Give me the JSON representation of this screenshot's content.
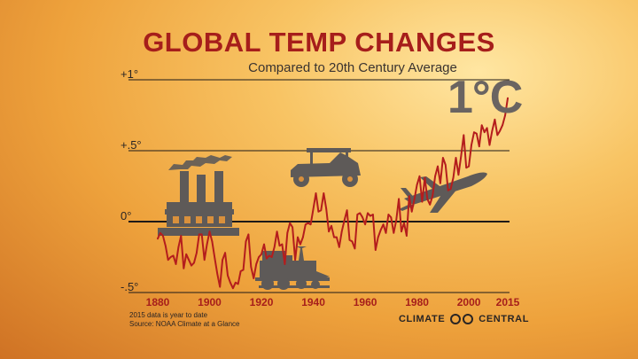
{
  "title": "GLOBAL TEMP CHANGES",
  "subtitle": "Compared to 20th Century Average",
  "big_label": "1°C",
  "notes": {
    "line1": "2015 data is year to date",
    "line2": "Source: NOAA Climate at a Glance"
  },
  "logo": {
    "left": "CLIMATE",
    "right": "CENTRAL"
  },
  "colors": {
    "line": "#b41d1d",
    "title": "#a61e1b",
    "silhouette": "#5e5a58",
    "grid": "#1e1a18"
  },
  "icons": [
    "factory-icon",
    "car-icon",
    "train-icon",
    "airplane-icon"
  ],
  "chart_data": {
    "type": "line",
    "title": "GLOBAL TEMP CHANGES",
    "subtitle": "Compared to 20th Century Average",
    "unit": "°C",
    "xlim": [
      1880,
      2015
    ],
    "ylim": [
      -0.5,
      1.0
    ],
    "ytick_labels": [
      {
        "value": 1.0,
        "label": "+1°"
      },
      {
        "value": 0.5,
        "label": "+.5°"
      },
      {
        "value": 0.0,
        "label": "0°"
      },
      {
        "value": -0.5,
        "label": "-.5°"
      }
    ],
    "xtick_labels": [
      {
        "value": 1880,
        "label": "1880"
      },
      {
        "value": 1900,
        "label": "1900"
      },
      {
        "value": 1920,
        "label": "1920"
      },
      {
        "value": 1940,
        "label": "1940"
      },
      {
        "value": 1960,
        "label": "1960"
      },
      {
        "value": 1980,
        "label": "1980"
      },
      {
        "value": 2000,
        "label": "2000"
      },
      {
        "value": 2015,
        "label": "2015"
      }
    ],
    "grid": true,
    "series": [
      {
        "x": [
          1880,
          1881,
          1882,
          1883,
          1884,
          1885,
          1886,
          1887,
          1888,
          1889,
          1890,
          1891,
          1892,
          1893,
          1894,
          1895,
          1896,
          1897,
          1898,
          1899,
          1900,
          1901,
          1902,
          1903,
          1904,
          1905,
          1906,
          1907,
          1908,
          1909,
          1910,
          1911,
          1912,
          1913,
          1914,
          1915,
          1916,
          1917,
          1918,
          1919,
          1920,
          1921,
          1922,
          1923,
          1924,
          1925,
          1926,
          1927,
          1928,
          1929,
          1930,
          1931,
          1932,
          1933,
          1934,
          1935,
          1936,
          1937,
          1938,
          1939,
          1940,
          1941,
          1942,
          1943,
          1944,
          1945,
          1946,
          1947,
          1948,
          1949,
          1950,
          1951,
          1952,
          1953,
          1954,
          1955,
          1956,
          1957,
          1958,
          1959,
          1960,
          1961,
          1962,
          1963,
          1964,
          1965,
          1966,
          1967,
          1968,
          1969,
          1970,
          1971,
          1972,
          1973,
          1974,
          1975,
          1976,
          1977,
          1978,
          1979,
          1980,
          1981,
          1982,
          1983,
          1984,
          1985,
          1986,
          1987,
          1988,
          1989,
          1990,
          1991,
          1992,
          1993,
          1994,
          1995,
          1996,
          1997,
          1998,
          1999,
          2000,
          2001,
          2002,
          2003,
          2004,
          2005,
          2006,
          2007,
          2008,
          2009,
          2010,
          2011,
          2012,
          2013,
          2014,
          2015
        ],
        "values": [
          -0.12,
          -0.08,
          -0.1,
          -0.17,
          -0.27,
          -0.25,
          -0.24,
          -0.3,
          -0.18,
          -0.1,
          -0.33,
          -0.23,
          -0.27,
          -0.31,
          -0.29,
          -0.22,
          -0.09,
          -0.09,
          -0.27,
          -0.16,
          -0.07,
          -0.14,
          -0.26,
          -0.37,
          -0.46,
          -0.27,
          -0.22,
          -0.38,
          -0.43,
          -0.47,
          -0.43,
          -0.44,
          -0.35,
          -0.34,
          -0.14,
          -0.09,
          -0.32,
          -0.4,
          -0.3,
          -0.25,
          -0.23,
          -0.16,
          -0.26,
          -0.24,
          -0.25,
          -0.18,
          -0.07,
          -0.17,
          -0.16,
          -0.3,
          -0.08,
          -0.01,
          -0.04,
          -0.27,
          -0.11,
          -0.16,
          -0.11,
          -0.02,
          -0.01,
          -0.02,
          0.09,
          0.2,
          0.07,
          0.08,
          0.2,
          0.09,
          -0.07,
          -0.03,
          -0.11,
          -0.11,
          -0.18,
          -0.07,
          0.01,
          0.08,
          -0.13,
          -0.14,
          -0.19,
          0.05,
          0.06,
          0.03,
          -0.02,
          0.06,
          0.04,
          0.05,
          -0.2,
          -0.11,
          -0.06,
          -0.02,
          -0.08,
          0.05,
          0.03,
          -0.08,
          0.01,
          0.16,
          -0.07,
          -0.01,
          -0.1,
          0.18,
          0.07,
          0.16,
          0.26,
          0.32,
          0.14,
          0.31,
          0.16,
          0.12,
          0.18,
          0.32,
          0.39,
          0.27,
          0.45,
          0.4,
          0.22,
          0.23,
          0.31,
          0.45,
          0.33,
          0.46,
          0.61,
          0.38,
          0.39,
          0.54,
          0.63,
          0.62,
          0.53,
          0.68,
          0.63,
          0.66,
          0.54,
          0.64,
          0.72,
          0.61,
          0.64,
          0.68,
          0.75,
          0.87
        ]
      }
    ]
  }
}
